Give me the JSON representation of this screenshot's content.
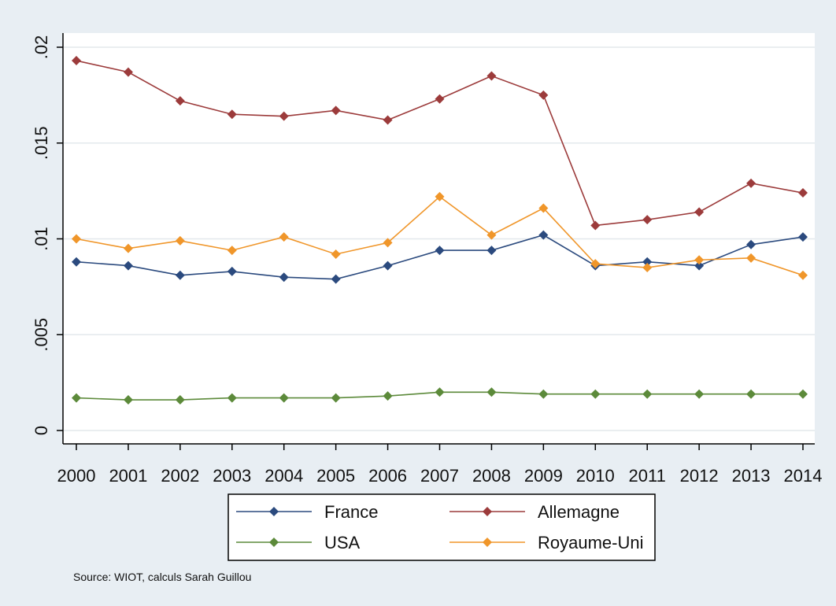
{
  "chart_data": {
    "type": "line",
    "x": [
      "2000",
      "2001",
      "2002",
      "2003",
      "2004",
      "2005",
      "2006",
      "2007",
      "2008",
      "2009",
      "2010",
      "2011",
      "2012",
      "2013",
      "2014"
    ],
    "y_ticks": [
      {
        "value": 0,
        "label": "0"
      },
      {
        "value": 0.005,
        "label": ".005"
      },
      {
        "value": 0.01,
        "label": ".01"
      },
      {
        "value": 0.015,
        "label": ".015"
      },
      {
        "value": 0.02,
        "label": ".02"
      }
    ],
    "ylim": [
      0,
      0.02
    ],
    "grid": true,
    "legend_position": "bottom",
    "series": [
      {
        "name": "France",
        "color": "#2b4a7e",
        "values": [
          0.0088,
          0.0086,
          0.0081,
          0.0083,
          0.008,
          0.0079,
          0.0086,
          0.0094,
          0.0094,
          0.0102,
          0.0086,
          0.0088,
          0.0086,
          0.0097,
          0.0101
        ]
      },
      {
        "name": "Allemagne",
        "color": "#9c3b3b",
        "values": [
          0.0193,
          0.0187,
          0.0172,
          0.0165,
          0.0164,
          0.0167,
          0.0162,
          0.0173,
          0.0185,
          0.0175,
          0.0107,
          0.011,
          0.0114,
          0.0129,
          0.0124
        ]
      },
      {
        "name": "USA",
        "color": "#5c8a3a",
        "values": [
          0.0017,
          0.0016,
          0.0016,
          0.0017,
          0.0017,
          0.0017,
          0.0018,
          0.002,
          0.002,
          0.0019,
          0.0019,
          0.0019,
          0.0019,
          0.0019,
          0.0019
        ]
      },
      {
        "name": "Royaume-Uni",
        "color": "#f0962a",
        "values": [
          0.01,
          0.0095,
          0.0099,
          0.0094,
          0.0101,
          0.0092,
          0.0098,
          0.0122,
          0.0102,
          0.0116,
          0.0087,
          0.0085,
          0.0089,
          0.009,
          0.0081
        ]
      }
    ],
    "note": "Source: WIOT, calculs Sarah Guillou"
  }
}
